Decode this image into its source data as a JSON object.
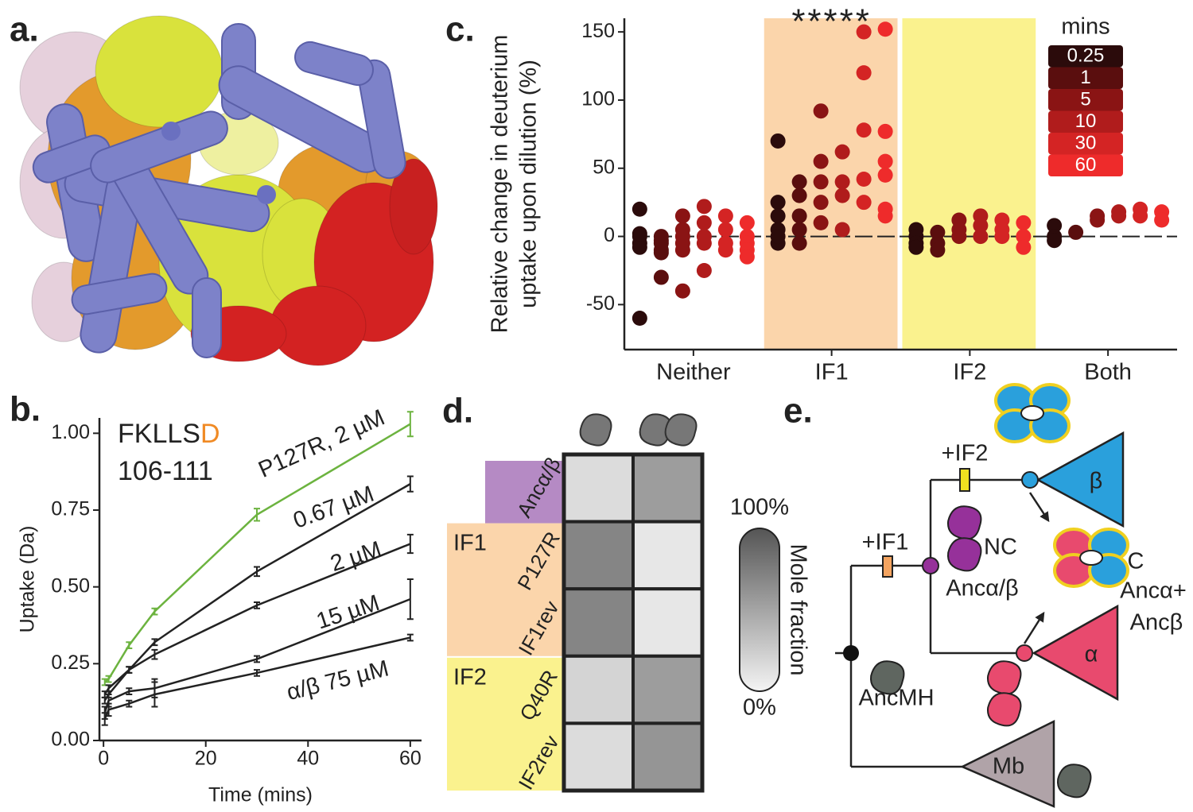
{
  "panel_labels": {
    "a": "a.",
    "b": "b.",
    "c": "c.",
    "d": "d.",
    "e": "e."
  },
  "chart_data": [
    {
      "type": "line",
      "title": "FKLLS",
      "title_highlight": "D",
      "title_highlight_color": "#f08a24",
      "subtitle": "106-111",
      "xlabel": "Time (mins)",
      "ylabel": "Uptake (Da)",
      "x": [
        0.25,
        1,
        5,
        10,
        30,
        60
      ],
      "xlim": [
        -0.8,
        62.2
      ],
      "xticks": [
        0,
        20,
        40,
        60
      ],
      "ylim": [
        0,
        1.05
      ],
      "yticks": [
        {
          "value": 0,
          "label": "0.00"
        },
        {
          "value": 0.25,
          "label": "0.25"
        },
        {
          "value": 0.5,
          "label": "0.50"
        },
        {
          "value": 0.75,
          "label": "0.75"
        },
        {
          "value": 1,
          "label": "1.00"
        }
      ],
      "series": [
        {
          "name": "P127R, 2 µM",
          "color": "#6cb33f",
          "values": [
            0.19,
            0.2,
            0.31,
            0.42,
            0.735,
            1.03
          ],
          "errors": [
            0.01,
            0.01,
            0.01,
            0.01,
            0.02,
            0.04
          ]
        },
        {
          "name": "0.67 µM",
          "color": "#222222",
          "values": [
            0.15,
            0.17,
            0.23,
            0.32,
            0.55,
            0.835
          ],
          "errors": [
            0.01,
            0.01,
            0.01,
            0.01,
            0.015,
            0.025
          ]
        },
        {
          "name": "2 µM",
          "color": "#222222",
          "values": [
            0.13,
            0.15,
            0.23,
            0.28,
            0.44,
            0.64
          ],
          "errors": [
            0.01,
            0.01,
            0.01,
            0.015,
            0.01,
            0.03
          ]
        },
        {
          "name": "15 µM",
          "color": "#222222",
          "values": [
            0.09,
            0.13,
            0.16,
            0.17,
            0.265,
            0.46
          ],
          "errors": [
            0.02,
            0.02,
            0.01,
            0.03,
            0.01,
            0.065
          ]
        },
        {
          "name": "α/β 75 µM",
          "color": "#222222",
          "values": [
            0.07,
            0.1,
            0.12,
            0.15,
            0.22,
            0.335
          ],
          "errors": [
            0.02,
            0.02,
            0.01,
            0.04,
            0.01,
            0.01
          ]
        }
      ]
    },
    {
      "type": "strip",
      "ylabel": [
        "Relative change in deuterium",
        "uptake upon dilution (%)"
      ],
      "categories": [
        "Neither",
        "IF1",
        "IF2",
        "Both"
      ],
      "highlights": [
        {
          "category": "IF1",
          "color": "#fbd5ab"
        },
        {
          "category": "IF2",
          "color": "#faf28e"
        }
      ],
      "annotation": "*****",
      "legend_title": "mins",
      "ylim": [
        -83,
        160
      ],
      "yticks": [
        -50,
        0,
        50,
        100,
        150
      ],
      "reference_line": 0,
      "series": [
        {
          "name": "0.25",
          "color": "#2b0b0b",
          "values": [
            [
              20,
              0,
              -5,
              -8,
              -60,
              2
            ],
            [
              70,
              25,
              15,
              5,
              -5,
              0
            ],
            [
              5,
              0,
              -5,
              -8
            ],
            [
              8,
              0,
              -3
            ]
          ]
        },
        {
          "name": "1",
          "color": "#5a0e0e",
          "values": [
            [
              -5,
              -10,
              -12,
              -30,
              0,
              -3
            ],
            [
              40,
              30,
              15,
              5,
              -5
            ],
            [
              3,
              -5,
              -10
            ],
            [
              3
            ]
          ]
        },
        {
          "name": "5",
          "color": "#8a1414",
          "values": [
            [
              15,
              5,
              -10,
              -40,
              0,
              -5
            ],
            [
              92,
              55,
              40,
              25,
              10
            ],
            [
              12,
              5,
              0
            ],
            [
              15,
              12
            ]
          ]
        },
        {
          "name": "10",
          "color": "#b01c1c",
          "values": [
            [
              22,
              10,
              0,
              -25,
              -5
            ],
            [
              62,
              40,
              30,
              5
            ],
            [
              15,
              8,
              0
            ],
            [
              18,
              15
            ]
          ]
        },
        {
          "name": "30",
          "color": "#d42424",
          "values": [
            [
              15,
              5,
              -5,
              -10
            ],
            [
              150,
              120,
              78,
              42,
              25
            ],
            [
              12,
              5,
              0
            ],
            [
              20,
              15
            ]
          ]
        },
        {
          "name": "60",
          "color": "#ee2b2b",
          "values": [
            [
              10,
              0,
              -5,
              -10,
              -15
            ],
            [
              152,
              77,
              55,
              45,
              20,
              15
            ],
            [
              10,
              0,
              -8
            ],
            [
              18,
              12
            ]
          ]
        }
      ]
    },
    {
      "type": "heatmap",
      "rows": [
        "Ancα/β",
        "P127R",
        "IF1rev",
        "Q40R",
        "IF2rev"
      ],
      "first_row_color": "#b58ac4",
      "groups": [
        {
          "name": "IF1",
          "rows": [
            "P127R",
            "IF1rev"
          ],
          "color": "#fbd5ab"
        },
        {
          "name": "IF2",
          "rows": [
            "Q40R",
            "IF2rev"
          ],
          "color": "#faf28e"
        }
      ],
      "values": [
        [
          15,
          55
        ],
        [
          70,
          8
        ],
        [
          70,
          8
        ],
        [
          20,
          55
        ],
        [
          15,
          60
        ]
      ],
      "zlim": [
        0,
        100
      ],
      "colorbar_label": "Mole fraction",
      "cticks": [
        {
          "value": 0,
          "label": "0%"
        },
        {
          "value": 100,
          "label": "100%"
        }
      ]
    }
  ],
  "diagram": {
    "if2": "+IF2",
    "if1": "+IF1",
    "beta": "β",
    "alpha": "α",
    "mb": "Mb",
    "nc": "NC",
    "anc_ab": "Ancα/β",
    "c": "C",
    "anc_a": "Ancα+",
    "anc_b": "Ancβ",
    "ancmh": "AncMH"
  }
}
